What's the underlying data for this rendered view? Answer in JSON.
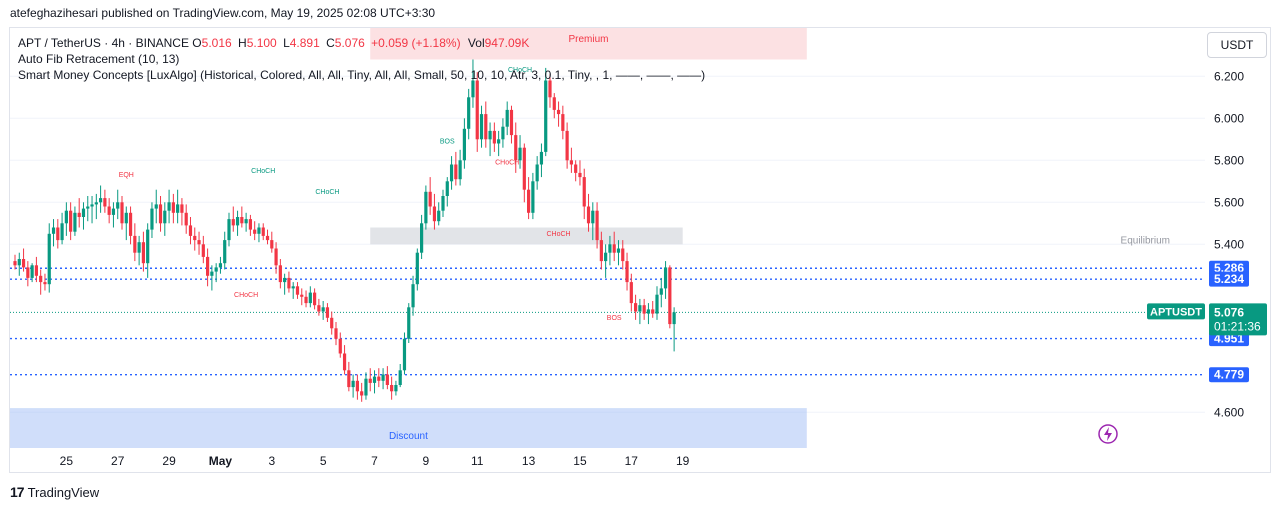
{
  "header": {
    "attribution": "atefeghazihesari published on TradingView.com, May 19, 2025 02:08 UTC+3:30"
  },
  "legend": {
    "symbol": "APT / TetherUS · 4h · BINANCE",
    "o_label": "O",
    "o_value": "5.016",
    "h_label": "H",
    "h_value": "5.100",
    "l_label": "L",
    "l_value": "4.891",
    "c_label": "C",
    "c_value": "5.076",
    "change": "+0.059 (+1.18%)",
    "vol_label": "Vol",
    "vol_value": "947.09K",
    "indicator1": "Auto Fib Retracement (10, 13)",
    "indicator2": "Smart Money Concepts [LuxAlgo] (Historical, Colored, All, All, Tiny, All, All, Small, 50, 10, 10, Atr, 3, 0.1, Tiny, , 1, ——, ——, ——)"
  },
  "toolbar": {
    "currency": "USDT"
  },
  "footer": {
    "brand": "TradingView"
  },
  "colors": {
    "up": "#089981",
    "down": "#f23645",
    "premium": "#f9c8cc",
    "discount": "#a9c2f5",
    "equilibrium": "#d6d9de",
    "price_tag": "#2962ff",
    "last_tag": "#089981"
  },
  "chart_data": {
    "type": "candlestick",
    "symbol": "APTUSDT",
    "interval": "4h",
    "ylim": [
      4.43,
      6.43
    ],
    "y_ticks": [
      4.6,
      5.4,
      5.6,
      5.8,
      6.0,
      6.2
    ],
    "y_tick_labels": [
      "4.600",
      "5.400",
      "5.600",
      "5.800",
      "6.000",
      "6.200"
    ],
    "x_ticks": [
      {
        "label": "25",
        "bar": 12
      },
      {
        "label": "27",
        "bar": 24
      },
      {
        "label": "29",
        "bar": 36
      },
      {
        "label": "May",
        "bar": 48
      },
      {
        "label": "3",
        "bar": 60
      },
      {
        "label": "5",
        "bar": 72
      },
      {
        "label": "7",
        "bar": 84
      },
      {
        "label": "9",
        "bar": 96
      },
      {
        "label": "11",
        "bar": 108
      },
      {
        "label": "13",
        "bar": 120
      },
      {
        "label": "15",
        "bar": 132
      },
      {
        "label": "17",
        "bar": 144
      },
      {
        "label": "19",
        "bar": 156
      }
    ],
    "zones": [
      {
        "name": "Premium",
        "from_bar": 83,
        "to_bar": 185,
        "y_low": 6.28,
        "y_high": 6.43
      },
      {
        "name": "Equilibrium",
        "from_bar": 83,
        "to_bar": 156,
        "y_low": 5.4,
        "y_high": 5.48
      },
      {
        "name": "Discount",
        "from_bar": -1,
        "to_bar": 185,
        "y_low": 4.43,
        "y_high": 4.62
      }
    ],
    "structure_labels": [
      {
        "text": "EQH",
        "bar": 26,
        "y": 5.72,
        "color": "down"
      },
      {
        "text": "CHoCH",
        "bar": 58,
        "y": 5.74,
        "color": "up"
      },
      {
        "text": "CHoCH",
        "bar": 73,
        "y": 5.64,
        "color": "up"
      },
      {
        "text": "CHoCH",
        "bar": 54,
        "y": 5.15,
        "color": "down"
      },
      {
        "text": "BOS",
        "bar": 101,
        "y": 5.88,
        "color": "up"
      },
      {
        "text": "CHoCH",
        "bar": 118,
        "y": 6.22,
        "color": "up"
      },
      {
        "text": "CHoCH",
        "bar": 115,
        "y": 5.78,
        "color": "down"
      },
      {
        "text": "CHoCH",
        "bar": 127,
        "y": 5.44,
        "color": "down"
      },
      {
        "text": "BOS",
        "bar": 140,
        "y": 5.04,
        "color": "down"
      }
    ],
    "price_levels": [
      {
        "label": "5.286",
        "value": 5.286,
        "style": "dotted"
      },
      {
        "label": "5.234",
        "value": 5.234,
        "style": "dotted"
      },
      {
        "label": "4.951",
        "value": 4.951,
        "style": "dotted"
      },
      {
        "label": "4.779",
        "value": 4.779,
        "style": "dotted"
      }
    ],
    "last_price": {
      "symbol": "APTUSDT",
      "value": 5.076,
      "countdown": "01:21:36"
    },
    "ohlc": [
      [
        5.32,
        5.35,
        5.28,
        5.3
      ],
      [
        5.3,
        5.36,
        5.25,
        5.33
      ],
      [
        5.33,
        5.38,
        5.27,
        5.29
      ],
      [
        5.29,
        5.32,
        5.2,
        5.24
      ],
      [
        5.24,
        5.31,
        5.22,
        5.3
      ],
      [
        5.3,
        5.34,
        5.22,
        5.25
      ],
      [
        5.25,
        5.28,
        5.16,
        5.22
      ],
      [
        5.22,
        5.26,
        5.18,
        5.21
      ],
      [
        5.21,
        5.5,
        5.17,
        5.45
      ],
      [
        5.45,
        5.52,
        5.39,
        5.48
      ],
      [
        5.48,
        5.52,
        5.38,
        5.42
      ],
      [
        5.42,
        5.55,
        5.4,
        5.5
      ],
      [
        5.5,
        5.6,
        5.44,
        5.56
      ],
      [
        5.56,
        5.6,
        5.42,
        5.46
      ],
      [
        5.46,
        5.58,
        5.44,
        5.55
      ],
      [
        5.55,
        5.62,
        5.48,
        5.53
      ],
      [
        5.53,
        5.6,
        5.47,
        5.57
      ],
      [
        5.57,
        5.63,
        5.51,
        5.58
      ],
      [
        5.58,
        5.63,
        5.5,
        5.59
      ],
      [
        5.59,
        5.64,
        5.52,
        5.6
      ],
      [
        5.6,
        5.68,
        5.55,
        5.62
      ],
      [
        5.62,
        5.66,
        5.55,
        5.58
      ],
      [
        5.58,
        5.62,
        5.5,
        5.54
      ],
      [
        5.54,
        5.6,
        5.48,
        5.57
      ],
      [
        5.57,
        5.66,
        5.52,
        5.6
      ],
      [
        5.6,
        5.63,
        5.47,
        5.5
      ],
      [
        5.5,
        5.58,
        5.42,
        5.55
      ],
      [
        5.55,
        5.58,
        5.4,
        5.44
      ],
      [
        5.44,
        5.5,
        5.32,
        5.36
      ],
      [
        5.36,
        5.44,
        5.3,
        5.41
      ],
      [
        5.41,
        5.46,
        5.27,
        5.31
      ],
      [
        5.31,
        5.5,
        5.24,
        5.47
      ],
      [
        5.47,
        5.6,
        5.43,
        5.57
      ],
      [
        5.57,
        5.66,
        5.5,
        5.59
      ],
      [
        5.59,
        5.63,
        5.46,
        5.5
      ],
      [
        5.5,
        5.6,
        5.44,
        5.56
      ],
      [
        5.56,
        5.66,
        5.5,
        5.6
      ],
      [
        5.6,
        5.64,
        5.5,
        5.55
      ],
      [
        5.55,
        5.66,
        5.5,
        5.59
      ],
      [
        5.59,
        5.62,
        5.49,
        5.55
      ],
      [
        5.55,
        5.59,
        5.45,
        5.49
      ],
      [
        5.49,
        5.53,
        5.4,
        5.44
      ],
      [
        5.44,
        5.48,
        5.37,
        5.42
      ],
      [
        5.42,
        5.46,
        5.35,
        5.4
      ],
      [
        5.4,
        5.44,
        5.31,
        5.34
      ],
      [
        5.34,
        5.38,
        5.2,
        5.25
      ],
      [
        5.25,
        5.3,
        5.18,
        5.27
      ],
      [
        5.27,
        5.31,
        5.22,
        5.29
      ],
      [
        5.29,
        5.34,
        5.26,
        5.31
      ],
      [
        5.31,
        5.46,
        5.28,
        5.42
      ],
      [
        5.42,
        5.55,
        5.39,
        5.52
      ],
      [
        5.52,
        5.58,
        5.46,
        5.49
      ],
      [
        5.49,
        5.56,
        5.44,
        5.53
      ],
      [
        5.53,
        5.58,
        5.48,
        5.5
      ],
      [
        5.5,
        5.55,
        5.46,
        5.52
      ],
      [
        5.52,
        5.54,
        5.44,
        5.47
      ],
      [
        5.47,
        5.51,
        5.42,
        5.45
      ],
      [
        5.45,
        5.5,
        5.41,
        5.48
      ],
      [
        5.48,
        5.5,
        5.42,
        5.44
      ],
      [
        5.44,
        5.47,
        5.4,
        5.42
      ],
      [
        5.42,
        5.46,
        5.36,
        5.38
      ],
      [
        5.38,
        5.41,
        5.26,
        5.3
      ],
      [
        5.3,
        5.33,
        5.19,
        5.22
      ],
      [
        5.22,
        5.26,
        5.16,
        5.24
      ],
      [
        5.24,
        5.27,
        5.17,
        5.19
      ],
      [
        5.19,
        5.22,
        5.14,
        5.2
      ],
      [
        5.2,
        5.22,
        5.14,
        5.16
      ],
      [
        5.16,
        5.19,
        5.11,
        5.15
      ],
      [
        5.15,
        5.18,
        5.1,
        5.12
      ],
      [
        5.12,
        5.2,
        5.1,
        5.17
      ],
      [
        5.17,
        5.19,
        5.09,
        5.11
      ],
      [
        5.11,
        5.14,
        5.06,
        5.08
      ],
      [
        5.08,
        5.13,
        5.04,
        5.1
      ],
      [
        5.1,
        5.12,
        5.03,
        5.05
      ],
      [
        5.05,
        5.08,
        4.97,
        5.0
      ],
      [
        5.0,
        5.03,
        4.92,
        4.95
      ],
      [
        4.95,
        4.98,
        4.86,
        4.88
      ],
      [
        4.88,
        4.92,
        4.78,
        4.8
      ],
      [
        4.8,
        4.84,
        4.7,
        4.72
      ],
      [
        4.72,
        4.78,
        4.67,
        4.75
      ],
      [
        4.75,
        4.78,
        4.66,
        4.7
      ],
      [
        4.7,
        4.74,
        4.65,
        4.68
      ],
      [
        4.68,
        4.79,
        4.66,
        4.76
      ],
      [
        4.76,
        4.81,
        4.7,
        4.74
      ],
      [
        4.74,
        4.8,
        4.69,
        4.77
      ],
      [
        4.77,
        4.81,
        4.72,
        4.75
      ],
      [
        4.75,
        4.81,
        4.71,
        4.78
      ],
      [
        4.78,
        4.82,
        4.71,
        4.73
      ],
      [
        4.73,
        4.77,
        4.66,
        4.7
      ],
      [
        4.7,
        4.75,
        4.68,
        4.73
      ],
      [
        4.73,
        4.83,
        4.72,
        4.8
      ],
      [
        4.8,
        4.98,
        4.78,
        4.95
      ],
      [
        4.95,
        5.12,
        4.93,
        5.1
      ],
      [
        5.1,
        5.25,
        5.06,
        5.21
      ],
      [
        5.21,
        5.38,
        5.18,
        5.36
      ],
      [
        5.36,
        5.54,
        5.33,
        5.5
      ],
      [
        5.5,
        5.68,
        5.47,
        5.65
      ],
      [
        5.65,
        5.72,
        5.54,
        5.58
      ],
      [
        5.58,
        5.64,
        5.47,
        5.51
      ],
      [
        5.51,
        5.6,
        5.49,
        5.56
      ],
      [
        5.56,
        5.66,
        5.53,
        5.63
      ],
      [
        5.63,
        5.72,
        5.58,
        5.7
      ],
      [
        5.7,
        5.82,
        5.66,
        5.78
      ],
      [
        5.78,
        5.84,
        5.68,
        5.71
      ],
      [
        5.71,
        5.85,
        5.68,
        5.8
      ],
      [
        5.8,
        6.0,
        5.76,
        5.95
      ],
      [
        5.95,
        6.14,
        5.9,
        6.1
      ],
      [
        6.1,
        6.28,
        6.05,
        6.18
      ],
      [
        6.18,
        6.22,
        5.84,
        5.9
      ],
      [
        5.9,
        6.06,
        5.86,
        6.02
      ],
      [
        6.02,
        6.08,
        5.86,
        5.9
      ],
      [
        5.9,
        5.98,
        5.82,
        5.94
      ],
      [
        5.94,
        5.98,
        5.84,
        5.88
      ],
      [
        5.88,
        5.94,
        5.82,
        5.9
      ],
      [
        5.9,
        6.0,
        5.86,
        5.96
      ],
      [
        5.96,
        6.08,
        5.92,
        6.04
      ],
      [
        6.04,
        6.06,
        5.88,
        5.92
      ],
      [
        5.92,
        5.98,
        5.74,
        5.8
      ],
      [
        5.8,
        5.92,
        5.76,
        5.86
      ],
      [
        5.86,
        5.88,
        5.6,
        5.66
      ],
      [
        5.66,
        5.72,
        5.52,
        5.55
      ],
      [
        5.55,
        5.74,
        5.52,
        5.7
      ],
      [
        5.7,
        5.82,
        5.66,
        5.78
      ],
      [
        5.78,
        5.88,
        5.72,
        5.84
      ],
      [
        5.84,
        6.24,
        5.82,
        6.18
      ],
      [
        6.18,
        6.21,
        6.05,
        6.1
      ],
      [
        6.1,
        6.12,
        6.0,
        6.04
      ],
      [
        6.04,
        6.08,
        5.96,
        6.02
      ],
      [
        6.02,
        6.06,
        5.9,
        5.94
      ],
      [
        5.94,
        5.98,
        5.76,
        5.8
      ],
      [
        5.8,
        5.86,
        5.74,
        5.78
      ],
      [
        5.78,
        5.8,
        5.7,
        5.74
      ],
      [
        5.74,
        5.8,
        5.68,
        5.72
      ],
      [
        5.72,
        5.76,
        5.52,
        5.58
      ],
      [
        5.58,
        5.64,
        5.46,
        5.5
      ],
      [
        5.5,
        5.6,
        5.42,
        5.56
      ],
      [
        5.56,
        5.6,
        5.38,
        5.42
      ],
      [
        5.42,
        5.46,
        5.28,
        5.32
      ],
      [
        5.32,
        5.4,
        5.24,
        5.36
      ],
      [
        5.36,
        5.44,
        5.3,
        5.4
      ],
      [
        5.4,
        5.46,
        5.32,
        5.36
      ],
      [
        5.36,
        5.42,
        5.3,
        5.38
      ],
      [
        5.38,
        5.42,
        5.28,
        5.32
      ],
      [
        5.32,
        5.36,
        5.18,
        5.22
      ],
      [
        5.22,
        5.26,
        5.08,
        5.12
      ],
      [
        5.12,
        5.16,
        5.04,
        5.08
      ],
      [
        5.08,
        5.14,
        5.02,
        5.11
      ],
      [
        5.11,
        5.14,
        5.04,
        5.07
      ],
      [
        5.07,
        5.12,
        5.02,
        5.09
      ],
      [
        5.09,
        5.13,
        5.05,
        5.07
      ],
      [
        5.07,
        5.2,
        5.04,
        5.16
      ],
      [
        5.16,
        5.24,
        5.1,
        5.19
      ],
      [
        5.19,
        5.32,
        5.14,
        5.29
      ],
      [
        5.29,
        5.3,
        5.0,
        5.02
      ],
      [
        5.02,
        5.1,
        4.89,
        5.076
      ]
    ]
  }
}
